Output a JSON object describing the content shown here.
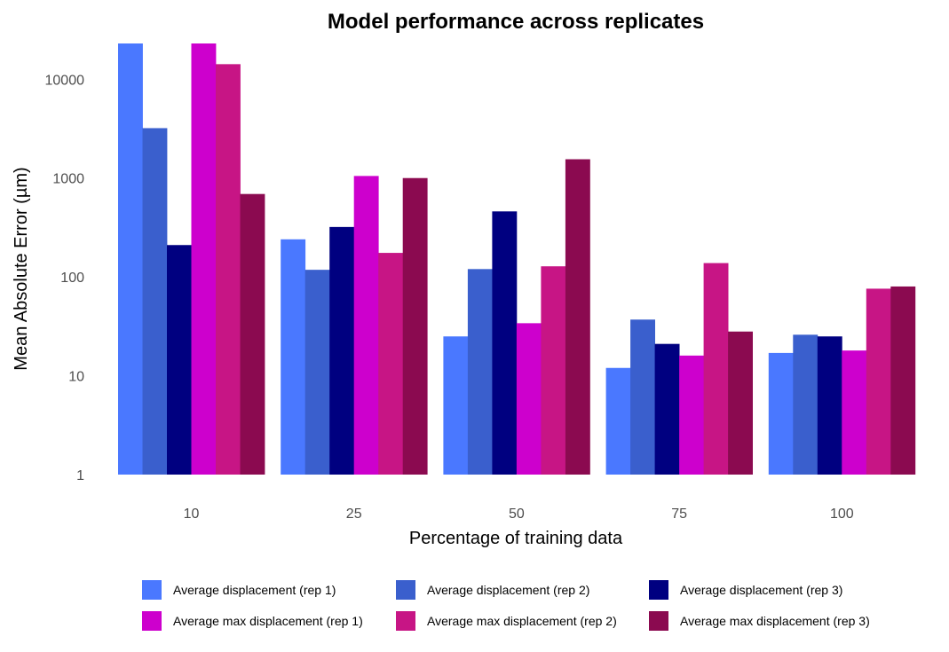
{
  "chart_data": {
    "type": "bar",
    "title": "Model performance across replicates",
    "xlabel": "Percentage of training data",
    "ylabel": "Mean Absolute Error (µm)",
    "yscale": "log",
    "ylim": [
      1,
      23000
    ],
    "yticks": [
      "1",
      "10",
      "100",
      "1000",
      "10000"
    ],
    "categories": [
      "10",
      "25",
      "50",
      "75",
      "100"
    ],
    "series": [
      {
        "name": "Average displacement (rep 1)",
        "color": "#4a78ff",
        "values": [
          23000,
          240,
          25,
          12,
          17
        ]
      },
      {
        "name": "Average displacement (rep 2)",
        "color": "#3a5fcd",
        "values": [
          3200,
          118,
          120,
          37,
          26
        ]
      },
      {
        "name": "Average displacement (rep 3)",
        "color": "#000080",
        "values": [
          210,
          320,
          460,
          21,
          25
        ]
      },
      {
        "name": "Average max displacement (rep 1)",
        "color": "#cd00cd",
        "values": [
          23000,
          1050,
          34,
          16,
          18
        ]
      },
      {
        "name": "Average max displacement (rep 2)",
        "color": "#c71585",
        "values": [
          14200,
          175,
          128,
          138,
          76
        ]
      },
      {
        "name": "Average max displacement (rep 3)",
        "color": "#8b0a50",
        "values": [
          690,
          1000,
          1550,
          28,
          80
        ]
      }
    ],
    "grid": false,
    "legend_position": "bottom"
  }
}
